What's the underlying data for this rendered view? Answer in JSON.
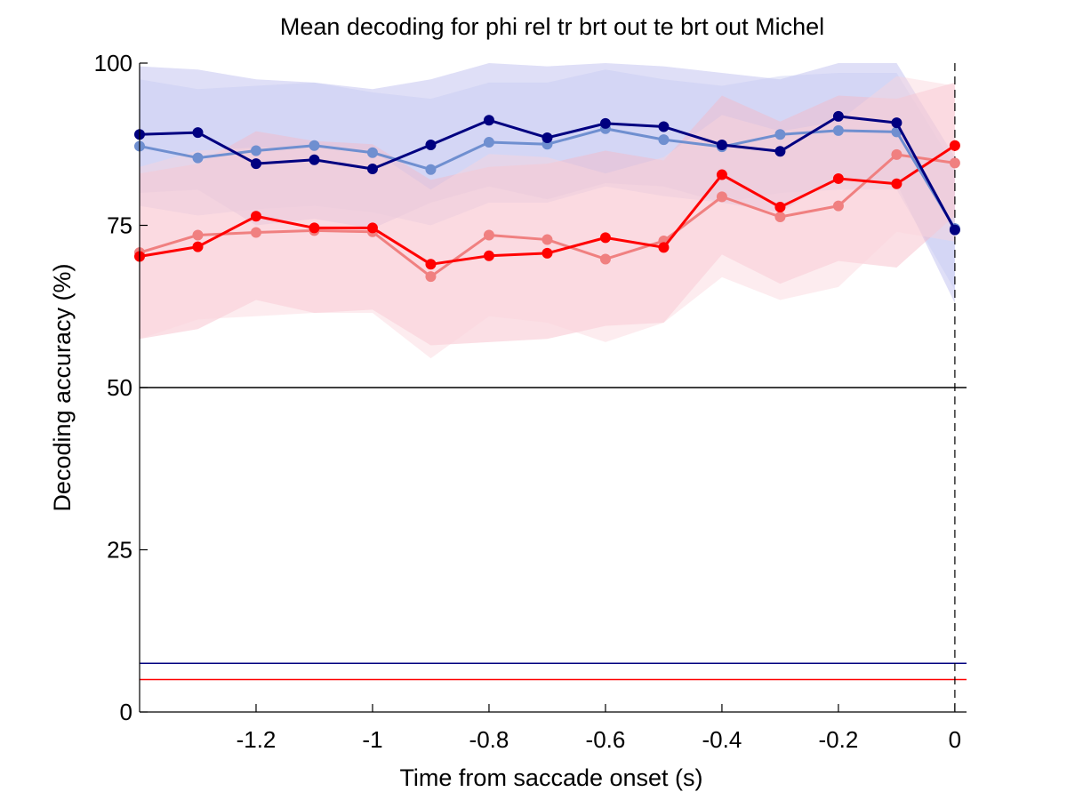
{
  "chart_data": {
    "type": "line",
    "title": "Mean decoding for phi rel tr brt out te brt out  Michel",
    "xlabel": "Time from saccade onset (s)",
    "ylabel": "Decoding accuracy (%)",
    "xlim": [
      -1.4,
      0.02
    ],
    "ylim": [
      0,
      100
    ],
    "x_ticks": [
      -1.2,
      -1,
      -0.8,
      -0.6,
      -0.4,
      -0.2,
      0
    ],
    "x_tick_labels": [
      "-1.2",
      "-1",
      "-0.8",
      "-0.6",
      "-0.4",
      "-0.2",
      "0"
    ],
    "y_ticks": [
      0,
      25,
      50,
      75,
      100
    ],
    "y_tick_labels": [
      "0",
      "25",
      "50",
      "75",
      "100"
    ],
    "grid": false,
    "reference_lines": [
      {
        "y": 50,
        "color": "#000000"
      },
      {
        "y": 7.5,
        "color": "#000080"
      },
      {
        "y": 5,
        "color": "#ff0000"
      }
    ],
    "vertical_line": {
      "x": 0,
      "style": "dashed",
      "color": "#000000"
    },
    "x": [
      -1.4,
      -1.3,
      -1.2,
      -1.1,
      -1.0,
      -0.9,
      -0.8,
      -0.7,
      -0.6,
      -0.5,
      -0.4,
      -0.3,
      -0.2,
      -0.1,
      0.0
    ],
    "series": [
      {
        "color": "#000080",
        "values": [
          89.0,
          89.3,
          84.5,
          85.1,
          83.7,
          87.4,
          91.2,
          88.5,
          90.7,
          90.2,
          87.4,
          86.4,
          91.8,
          90.8,
          74.3
        ],
        "band_upper": [
          99.5,
          99.0,
          97.5,
          97.0,
          96.0,
          97.5,
          100.0,
          99.5,
          100.0,
          99.5,
          98.5,
          97.5,
          100.0,
          100.0,
          85.5
        ],
        "band_lower": [
          80.0,
          80.5,
          75.0,
          76.0,
          74.5,
          78.5,
          81.0,
          79.0,
          81.5,
          81.0,
          78.5,
          77.0,
          82.5,
          81.5,
          63.0
        ],
        "band_color": "#b8b8ee"
      },
      {
        "color": "#6f8fd0",
        "values": [
          87.2,
          85.4,
          86.5,
          87.3,
          86.2,
          83.6,
          87.8,
          87.5,
          89.9,
          88.2,
          87.1,
          89.0,
          89.6,
          89.4,
          74.5
        ],
        "band_upper": [
          97.5,
          96.0,
          96.5,
          97.0,
          95.5,
          94.5,
          97.0,
          97.0,
          99.0,
          97.5,
          96.5,
          98.0,
          98.5,
          98.5,
          84.0
        ],
        "band_lower": [
          78.0,
          76.5,
          77.5,
          78.0,
          77.0,
          75.0,
          78.5,
          78.5,
          81.0,
          79.5,
          78.5,
          80.0,
          80.5,
          80.5,
          65.0
        ],
        "band_color": "#c8ccf2"
      },
      {
        "color": "#ff0000",
        "values": [
          70.2,
          71.7,
          76.4,
          74.6,
          74.6,
          69.0,
          70.3,
          70.7,
          73.1,
          71.6,
          82.8,
          77.8,
          82.2,
          81.4,
          87.3
        ],
        "band_upper": [
          83.0,
          84.5,
          89.5,
          88.0,
          87.5,
          82.0,
          84.0,
          84.5,
          86.5,
          85.0,
          95.0,
          91.0,
          95.0,
          94.5,
          97.0
        ],
        "band_lower": [
          57.5,
          59.0,
          63.5,
          61.5,
          62.0,
          56.5,
          57.0,
          57.5,
          59.5,
          60.0,
          70.5,
          66.0,
          69.5,
          68.5,
          76.5
        ],
        "band_color": "#f7b8c6"
      },
      {
        "color": "#f08080",
        "values": [
          70.8,
          73.5,
          73.9,
          74.2,
          74.0,
          67.1,
          73.5,
          72.8,
          69.8,
          72.6,
          79.4,
          76.3,
          78.0,
          85.9,
          84.6
        ],
        "band_upper": [
          84.0,
          86.5,
          87.0,
          87.0,
          86.5,
          80.5,
          86.0,
          85.5,
          83.0,
          85.5,
          92.0,
          89.5,
          91.0,
          98.0,
          96.5
        ],
        "band_lower": [
          57.5,
          60.5,
          61.0,
          61.5,
          61.5,
          54.5,
          61.0,
          60.0,
          57.0,
          60.0,
          67.0,
          63.5,
          65.5,
          74.0,
          72.5
        ],
        "band_color": "#fbd4dc"
      }
    ]
  }
}
